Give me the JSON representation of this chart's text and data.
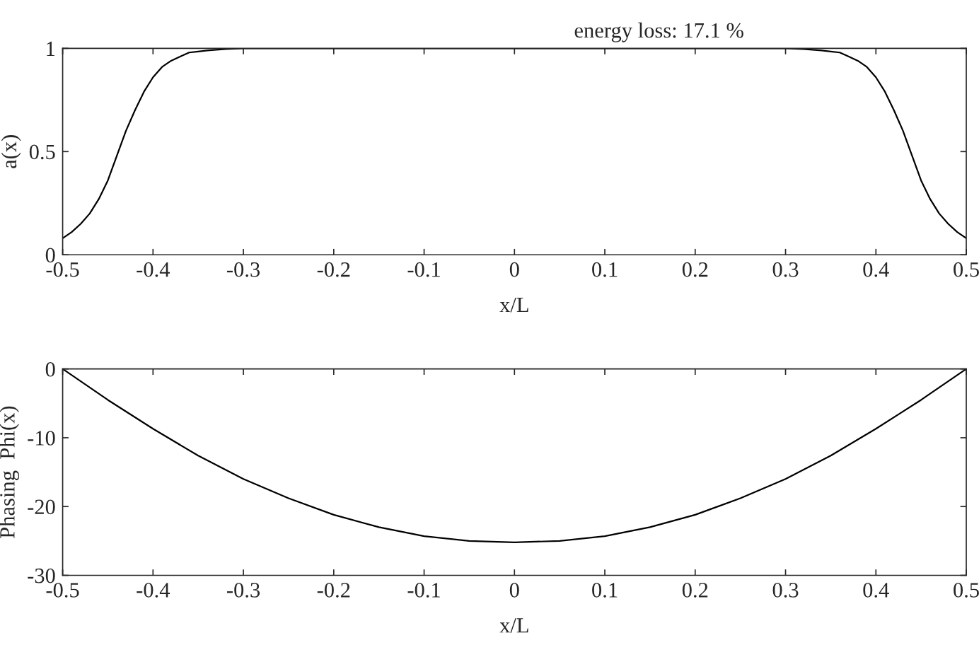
{
  "chart_data": [
    {
      "type": "line",
      "xlabel": "x/L",
      "ylabel": "a(x)",
      "annotations": [
        "energy loss: 17.1 %"
      ],
      "xlim": [
        -0.5,
        0.5
      ],
      "ylim": [
        0,
        1
      ],
      "xticks": [
        -0.5,
        -0.4,
        -0.3,
        -0.2,
        -0.1,
        0,
        0.1,
        0.2,
        0.3,
        0.4,
        0.5
      ],
      "yticks": [
        0,
        0.5,
        1
      ],
      "grid": false,
      "legend": false,
      "series": [
        {
          "color": "#000000",
          "x": [
            -0.5,
            -0.49,
            -0.48,
            -0.47,
            -0.46,
            -0.45,
            -0.44,
            -0.43,
            -0.42,
            -0.41,
            -0.4,
            -0.39,
            -0.38,
            -0.37,
            -0.36,
            -0.35,
            -0.34,
            -0.32,
            -0.3,
            0,
            0.3,
            0.32,
            0.34,
            0.35,
            0.36,
            0.37,
            0.38,
            0.39,
            0.4,
            0.41,
            0.42,
            0.43,
            0.44,
            0.45,
            0.46,
            0.47,
            0.48,
            0.49,
            0.5
          ],
          "values": [
            0.08,
            0.11,
            0.15,
            0.2,
            0.27,
            0.36,
            0.48,
            0.6,
            0.7,
            0.79,
            0.86,
            0.91,
            0.94,
            0.96,
            0.98,
            0.985,
            0.99,
            0.997,
            1.0,
            1.0,
            1.0,
            0.997,
            0.99,
            0.985,
            0.98,
            0.96,
            0.94,
            0.91,
            0.86,
            0.79,
            0.7,
            0.6,
            0.48,
            0.36,
            0.27,
            0.2,
            0.15,
            0.11,
            0.08
          ]
        }
      ]
    },
    {
      "type": "line",
      "xlabel": "x/L",
      "ylabel": "Phasing  Phi(x)",
      "xlim": [
        -0.5,
        0.5
      ],
      "ylim": [
        -30,
        0
      ],
      "xticks": [
        -0.5,
        -0.4,
        -0.3,
        -0.2,
        -0.1,
        0,
        0.1,
        0.2,
        0.3,
        0.4,
        0.5
      ],
      "yticks": [
        -30,
        -20,
        -10,
        0
      ],
      "grid": false,
      "legend": false,
      "series": [
        {
          "color": "#000000",
          "x": [
            -0.5,
            -0.45,
            -0.4,
            -0.35,
            -0.3,
            -0.25,
            -0.2,
            -0.15,
            -0.1,
            -0.05,
            0,
            0.05,
            0.1,
            0.15,
            0.2,
            0.25,
            0.3,
            0.35,
            0.4,
            0.45,
            0.5
          ],
          "values": [
            0,
            -4.5,
            -8.7,
            -12.6,
            -16.0,
            -18.8,
            -21.2,
            -23.0,
            -24.3,
            -25.0,
            -25.2,
            -25.0,
            -24.3,
            -23.0,
            -21.2,
            -18.8,
            -16.0,
            -12.6,
            -8.7,
            -4.5,
            0
          ]
        }
      ]
    }
  ]
}
